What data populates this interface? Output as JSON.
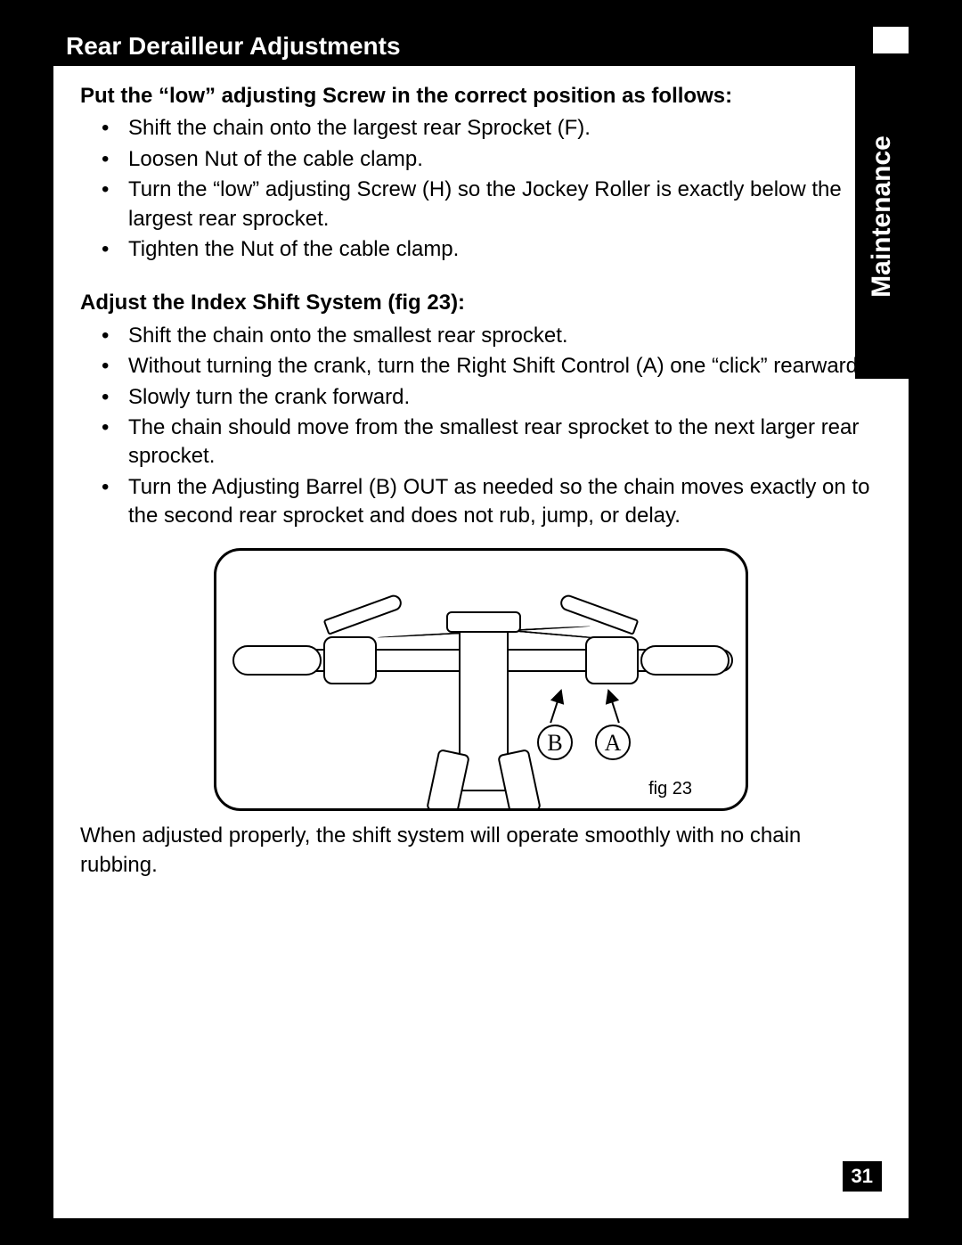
{
  "page": {
    "title": "Rear Derailleur Adjustments",
    "sideTab": "Maintenance",
    "pageNumber": "31"
  },
  "section1": {
    "heading": "Put the “low” adjusting Screw in the correct position as follows:",
    "items": [
      "Shift the chain onto the largest rear Sprocket (F).",
      "Loosen Nut of the cable clamp.",
      "Turn the “low” adjusting Screw (H) so the Jockey Roller is exactly below the largest rear sprocket.",
      "Tighten the Nut of the cable clamp."
    ]
  },
  "section2": {
    "heading": "Adjust the Index Shift System (fig 23):",
    "items": [
      "Shift the chain onto the smallest rear sprocket.",
      "Without turning the crank, turn the Right Shift Control (A) one “click” rearward.",
      "Slowly turn the crank forward.",
      "The chain should move from the smallest rear sprocket to the next larger rear sprocket.",
      "Turn the Adjusting Barrel (B) OUT as needed so the chain moves exactly on to the second rear sprocket and does not rub, jump, or delay."
    ]
  },
  "figure": {
    "caption": "fig 23",
    "labelA": "A",
    "labelB": "B"
  },
  "closing": "When adjusted properly, the shift system will operate smoothly with no chain rubbing."
}
